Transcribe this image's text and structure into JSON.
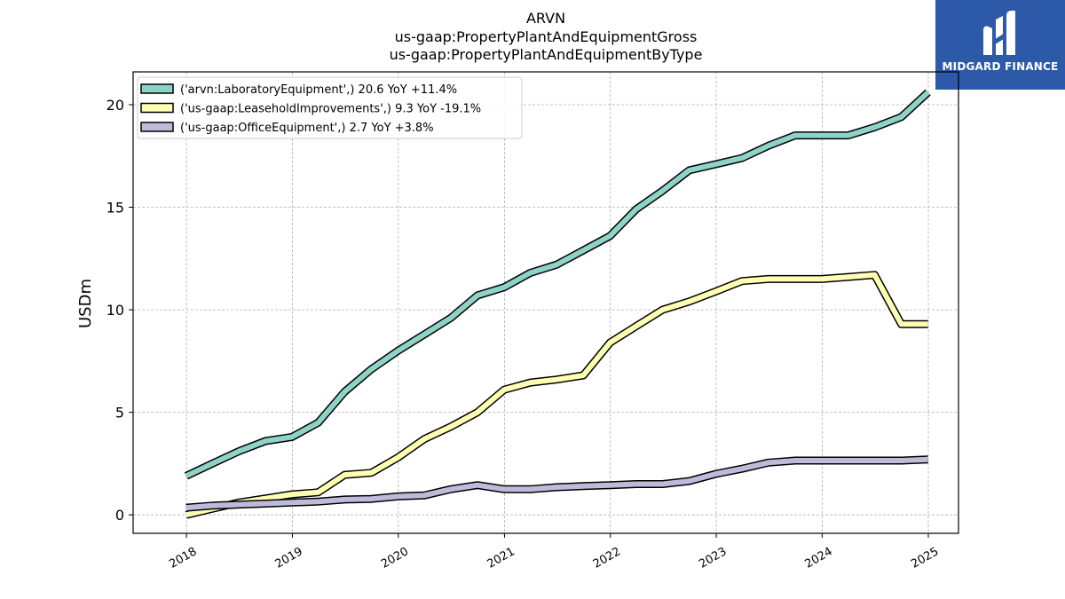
{
  "titles": [
    "ARVN",
    "us-gaap:PropertyPlantAndEquipmentGross",
    "us-gaap:PropertyPlantAndEquipmentByType"
  ],
  "logo": {
    "text": "MIDGARD FINANCE",
    "color": "#2c5aa8"
  },
  "chart_data": {
    "type": "line",
    "ylabel": "USDm",
    "ylim": [
      -0.9,
      21.6
    ],
    "yticks": [
      0,
      5,
      10,
      15,
      20
    ],
    "xticks": [
      "2018",
      "2019",
      "2020",
      "2021",
      "2022",
      "2023",
      "2024",
      "2025"
    ],
    "grid": true,
    "legend_position": "top-left",
    "x": [
      "2017-12-31",
      "2018-03-31",
      "2018-06-30",
      "2018-09-30",
      "2018-12-31",
      "2019-03-31",
      "2019-06-30",
      "2019-09-30",
      "2019-12-31",
      "2020-03-31",
      "2020-06-30",
      "2020-09-30",
      "2020-12-31",
      "2021-03-31",
      "2021-06-30",
      "2021-09-30",
      "2021-12-31",
      "2022-03-31",
      "2022-06-30",
      "2022-09-30",
      "2022-12-31",
      "2023-03-31",
      "2023-06-30",
      "2023-09-30",
      "2023-12-31",
      "2024-03-31",
      "2024-06-30",
      "2024-09-30",
      "2024-12-31"
    ],
    "series": [
      {
        "name": "('arvn:LaboratoryEquipment',) 20.6 YoY +11.4%",
        "color": "#8dd3c7",
        "values": [
          1.9,
          2.5,
          3.1,
          3.6,
          3.8,
          4.5,
          6.0,
          7.1,
          8.0,
          8.8,
          9.6,
          10.7,
          11.1,
          11.8,
          12.2,
          12.9,
          13.6,
          14.9,
          15.8,
          16.8,
          17.1,
          17.4,
          18.0,
          18.5,
          18.5,
          18.5,
          18.9,
          19.4,
          20.6
        ]
      },
      {
        "name": "('us-gaap:LeaseholdImprovements',) 9.3 YoY -19.1%",
        "color": "#ffffb3",
        "values": [
          0.0,
          0.3,
          0.6,
          0.8,
          1.0,
          1.1,
          1.95,
          2.05,
          2.8,
          3.7,
          4.3,
          5.0,
          6.1,
          6.45,
          6.6,
          6.8,
          8.4,
          9.2,
          10.0,
          10.4,
          10.9,
          11.4,
          11.5,
          11.5,
          11.5,
          11.6,
          11.7,
          9.3,
          9.3
        ]
      },
      {
        "name": "('us-gaap:OfficeEquipment',) 2.7 YoY +3.8%",
        "color": "#bebada",
        "values": [
          0.35,
          0.45,
          0.5,
          0.55,
          0.6,
          0.65,
          0.75,
          0.78,
          0.9,
          0.95,
          1.25,
          1.45,
          1.25,
          1.25,
          1.35,
          1.4,
          1.45,
          1.5,
          1.5,
          1.65,
          2.0,
          2.25,
          2.55,
          2.65,
          2.65,
          2.65,
          2.65,
          2.65,
          2.7
        ]
      }
    ]
  }
}
